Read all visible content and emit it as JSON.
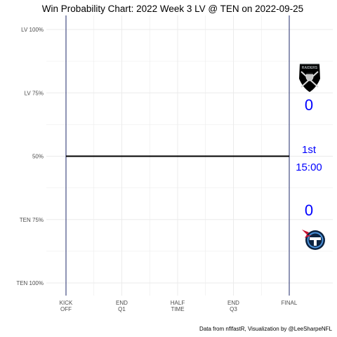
{
  "chart_data": {
    "type": "line",
    "title": "Win Probability Chart: 2022 Week 3 LV @ TEN on 2022-09-25",
    "caption": "Data from nflfastR, Visualization by @LeeSharpeNFL",
    "y_tick_labels": [
      "LV 100%",
      "LV 75%",
      "50%",
      "TEN 75%",
      "TEN 100%"
    ],
    "y_tick_values": [
      1.0,
      0.75,
      0.5,
      0.25,
      0.0
    ],
    "x_tick_labels": [
      {
        "line1": "KICK",
        "line2": "OFF"
      },
      {
        "line1": "END",
        "line2": "Q1"
      },
      {
        "line1": "HALF",
        "line2": "TIME"
      },
      {
        "line1": "END",
        "line2": "Q3"
      },
      {
        "line1": "FINAL",
        "line2": ""
      }
    ],
    "x_tick_values": [
      0,
      900,
      1800,
      2700,
      3600
    ],
    "xlim": [
      0,
      3600
    ],
    "ylim": [
      0,
      1
    ],
    "series": [
      {
        "x": [
          0,
          3600
        ],
        "y": [
          0.5,
          0.5
        ]
      }
    ],
    "line_color": "#000000",
    "vline_color": "#1f2a6b",
    "vline_x": [
      0,
      3600
    ],
    "grid": true,
    "grid_color": "#ebebeb",
    "away_team": {
      "logo": "raiders-logo",
      "score": "0",
      "color": "#0000ff"
    },
    "home_team": {
      "logo": "titans-logo",
      "score": "0",
      "color": "#0000ff"
    },
    "game_clock": {
      "quarter": "1st",
      "time": "15:00",
      "color": "#0000ff"
    }
  }
}
